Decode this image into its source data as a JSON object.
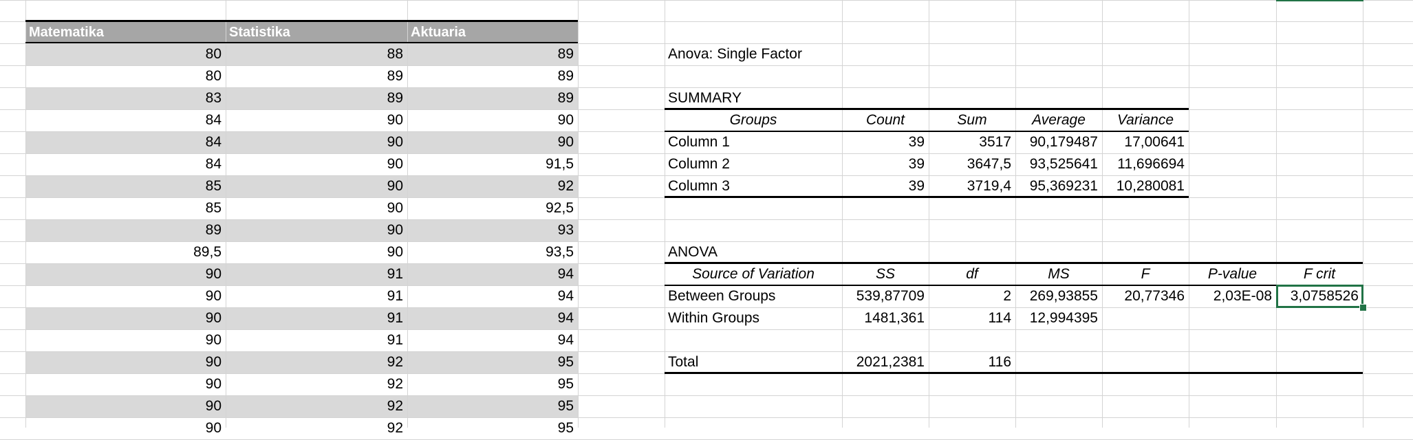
{
  "colors": {
    "band": "#d9d9d9",
    "header_fill": "#a6a6a6",
    "header_text": "#ffffff",
    "grid": "#d4d4d4",
    "selection": "#217346"
  },
  "data_table": {
    "headers": [
      "Matematika",
      "Statistika",
      "Aktuaria"
    ],
    "rows": [
      [
        "80",
        "88",
        "89"
      ],
      [
        "80",
        "89",
        "89"
      ],
      [
        "83",
        "89",
        "89"
      ],
      [
        "84",
        "90",
        "90"
      ],
      [
        "84",
        "90",
        "90"
      ],
      [
        "84",
        "90",
        "91,5"
      ],
      [
        "85",
        "90",
        "92"
      ],
      [
        "85",
        "90",
        "92,5"
      ],
      [
        "89",
        "90",
        "93"
      ],
      [
        "89,5",
        "90",
        "93,5"
      ],
      [
        "90",
        "91",
        "94"
      ],
      [
        "90",
        "91",
        "94"
      ],
      [
        "90",
        "91",
        "94"
      ],
      [
        "90",
        "91",
        "94"
      ],
      [
        "90",
        "92",
        "95"
      ],
      [
        "90",
        "92",
        "95"
      ],
      [
        "90",
        "92",
        "95"
      ],
      [
        "90",
        "92",
        "95"
      ]
    ]
  },
  "anova": {
    "title": "Anova: Single Factor",
    "summary_label": "SUMMARY",
    "summary_headers": [
      "Groups",
      "Count",
      "Sum",
      "Average",
      "Variance"
    ],
    "summary_rows": [
      [
        "Column 1",
        "39",
        "3517",
        "90,179487",
        "17,00641"
      ],
      [
        "Column 2",
        "39",
        "3647,5",
        "93,525641",
        "11,696694"
      ],
      [
        "Column 3",
        "39",
        "3719,4",
        "95,369231",
        "10,280081"
      ]
    ],
    "anova_label": "ANOVA",
    "anova_headers": [
      "Source of Variation",
      "SS",
      "df",
      "MS",
      "F",
      "P-value",
      "F crit"
    ],
    "anova_rows": [
      [
        "Between Groups",
        "539,87709",
        "2",
        "269,93855",
        "20,77346",
        "2,03E-08",
        "3,0758526"
      ],
      [
        "Within Groups",
        "1481,361",
        "114",
        "12,994395",
        "",
        "",
        ""
      ],
      [
        "",
        "",
        "",
        "",
        "",
        "",
        ""
      ],
      [
        "Total",
        "2021,2381",
        "116",
        "",
        "",
        "",
        ""
      ]
    ]
  },
  "selected_cell": "F crit value"
}
